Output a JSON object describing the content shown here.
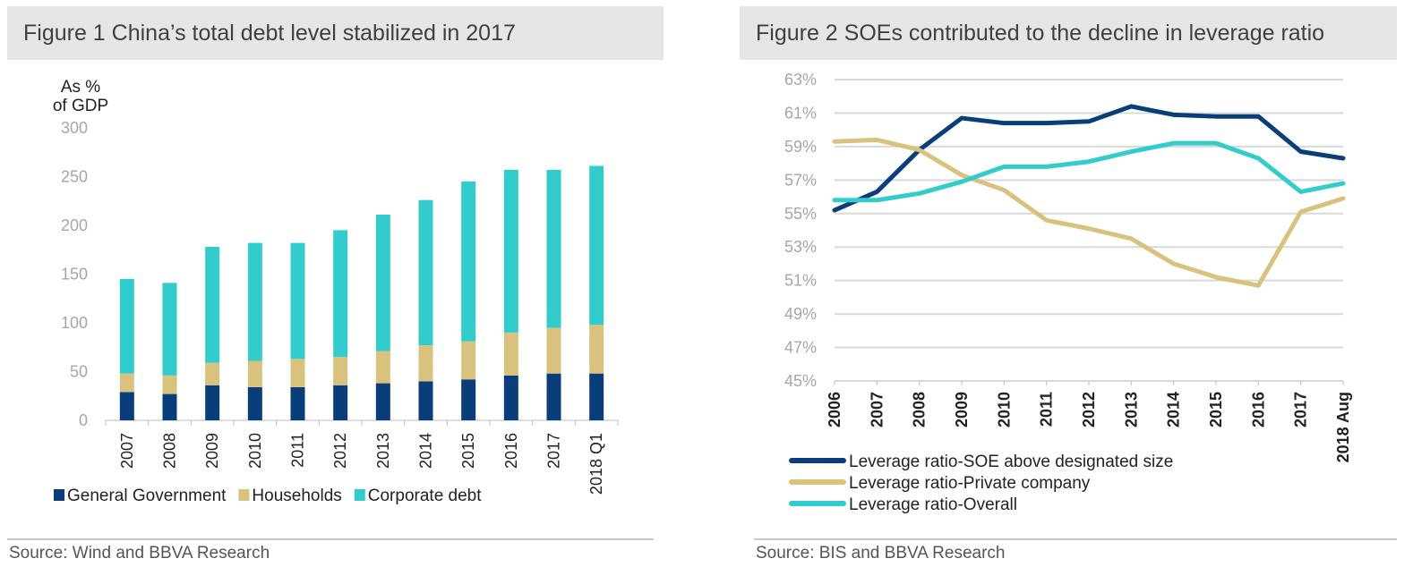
{
  "figure1": {
    "title": "Figure 1 China’s total debt level stabilized in 2017",
    "source": "Source: Wind and BBVA Research"
  },
  "figure2": {
    "title": "Figure 2 SOEs contributed to the decline in leverage ratio",
    "source": "Source: BIS and BBVA Research"
  },
  "chart_data": [
    {
      "type": "bar",
      "stacked": true,
      "title": "Figure 1 China’s total debt level stabilized in 2017",
      "ylabel_lines": [
        "As %",
        "of GDP"
      ],
      "ylim": [
        0,
        300
      ],
      "yticks": [
        0,
        50,
        100,
        150,
        200,
        250,
        300
      ],
      "categories": [
        "2007",
        "2008",
        "2009",
        "2010",
        "2011",
        "2012",
        "2013",
        "2014",
        "2015",
        "2016",
        "2017",
        "2018 Q1"
      ],
      "series": [
        {
          "name": "General Government",
          "color": "#0a3e7a",
          "values": [
            29,
            27,
            36,
            34,
            34,
            36,
            38,
            40,
            42,
            46,
            48,
            48
          ]
        },
        {
          "name": "Households",
          "color": "#d9c27e",
          "values": [
            19,
            19,
            23,
            27,
            29,
            29,
            33,
            37,
            39,
            44,
            47,
            50
          ]
        },
        {
          "name": "Corporate debt",
          "color": "#33cccc",
          "values": [
            97,
            95,
            119,
            121,
            119,
            130,
            140,
            149,
            164,
            167,
            162,
            163
          ]
        }
      ],
      "legend_position": "bottom",
      "grid": false
    },
    {
      "type": "line",
      "title": "Figure 2 SOEs contributed to the decline in leverage ratio",
      "ylim": [
        45,
        63
      ],
      "yticks": [
        "45%",
        "47%",
        "49%",
        "51%",
        "53%",
        "55%",
        "57%",
        "59%",
        "61%",
        "63%"
      ],
      "categories": [
        "2006",
        "2007",
        "2008",
        "2009",
        "2010",
        "2011",
        "2012",
        "2013",
        "2014",
        "2015",
        "2016",
        "2017",
        "2018 Aug"
      ],
      "series": [
        {
          "name": "Leverage ratio-SOE above designated size",
          "color": "#0a3e7a",
          "values": [
            55.2,
            56.3,
            58.8,
            60.7,
            60.4,
            60.4,
            60.5,
            61.4,
            60.9,
            60.8,
            60.8,
            58.7,
            58.3
          ]
        },
        {
          "name": "Leverage ratio-Private company",
          "color": "#d9c27e",
          "values": [
            59.3,
            59.4,
            58.8,
            57.3,
            56.4,
            54.6,
            54.1,
            53.5,
            52.0,
            51.2,
            50.7,
            55.1,
            55.9
          ]
        },
        {
          "name": "Leverage ratio-Overall",
          "color": "#33cccc",
          "values": [
            55.8,
            55.8,
            56.2,
            56.9,
            57.8,
            57.8,
            58.1,
            58.7,
            59.2,
            59.2,
            58.3,
            56.3,
            56.8
          ]
        }
      ],
      "legend_position": "bottom",
      "grid": true
    }
  ]
}
